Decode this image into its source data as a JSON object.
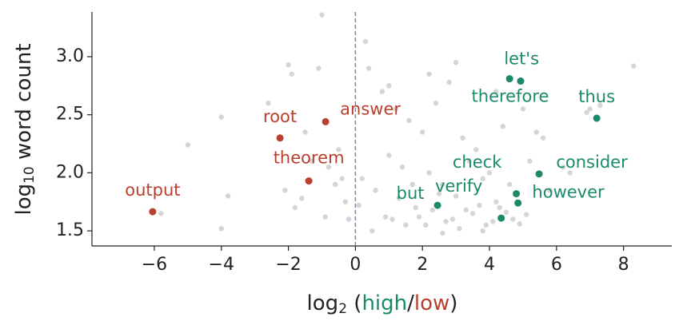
{
  "chart_data": {
    "type": "scatter",
    "xlabel": {
      "base": "log",
      "sub": "2",
      "open": " (",
      "high": "high",
      "slash": "/",
      "low": "low",
      "close": ")"
    },
    "ylabel": {
      "base": "log",
      "sub": "10",
      "rest": " word count"
    },
    "xlim": [
      -7.86,
      9.44
    ],
    "ylim": [
      1.37,
      3.385
    ],
    "xticks": [
      {
        "value": -6,
        "label": "−6"
      },
      {
        "value": -4,
        "label": "−4"
      },
      {
        "value": -2,
        "label": "−2"
      },
      0,
      2,
      4,
      6,
      8
    ],
    "yticks": [
      1.5,
      {
        "value": 2,
        "label": "2.0"
      },
      2.5,
      {
        "value": 3,
        "label": "3.0"
      }
    ],
    "vline": 0,
    "high_color": "#1b8a6b",
    "low_color": "#b9402e",
    "series": [
      {
        "color": "#c9cbcc",
        "x": [
          -1.0,
          0.3,
          -5.0,
          -4.0,
          -3.8,
          -5.8,
          -4.0,
          -2.0,
          -1.1,
          -1.9,
          -2.6,
          -1.5,
          -1.3,
          -0.8,
          -0.6,
          -0.3,
          -0.5,
          -1.8,
          -2.1,
          -0.2,
          0.4,
          0.8,
          1.2,
          1.6,
          2.0,
          2.4,
          2.8,
          3.2,
          3.6,
          4.0,
          4.4,
          5.0,
          5.6,
          6.2,
          7.0,
          8.3,
          0.2,
          0.6,
          1.0,
          1.4,
          1.8,
          2.2,
          2.6,
          3.0,
          3.4,
          3.8,
          4.2,
          4.6,
          5.2,
          5.8,
          6.4,
          1.1,
          1.5,
          1.9,
          2.3,
          2.7,
          3.1,
          3.5,
          3.9,
          4.3,
          4.7,
          5.1,
          0.1,
          0.5,
          0.9,
          1.3,
          1.7,
          2.1,
          2.5,
          2.9,
          3.3,
          3.7,
          4.1,
          4.5,
          4.9,
          -0.4,
          -0.9,
          -1.6,
          1.0,
          2.2,
          3.0,
          4.2,
          7.3,
          6.9,
          5.4,
          3.8,
          2.6
        ],
        "y": [
          3.36,
          3.13,
          2.24,
          2.48,
          1.8,
          1.65,
          1.52,
          2.93,
          2.9,
          2.85,
          2.6,
          2.35,
          2.1,
          2.05,
          1.9,
          1.75,
          2.2,
          1.7,
          1.85,
          1.6,
          2.9,
          2.7,
          2.55,
          2.45,
          2.35,
          2.6,
          2.78,
          2.3,
          2.2,
          2.0,
          2.4,
          2.55,
          2.3,
          2.05,
          2.55,
          2.92,
          1.95,
          1.85,
          2.15,
          2.05,
          1.7,
          2.0,
          1.9,
          1.8,
          2.1,
          1.95,
          1.75,
          1.9,
          2.1,
          1.85,
          2.0,
          1.6,
          1.55,
          1.62,
          1.68,
          1.58,
          1.52,
          1.65,
          1.55,
          1.7,
          1.6,
          1.64,
          1.72,
          1.5,
          1.62,
          1.78,
          1.9,
          1.55,
          1.82,
          1.6,
          1.68,
          1.72,
          1.58,
          1.66,
          1.56,
          1.95,
          1.62,
          1.78,
          2.75,
          2.85,
          2.95,
          2.7,
          2.58,
          2.52,
          2.35,
          1.5,
          1.48
        ]
      },
      {
        "color": "#b9402e",
        "x": [
          -6.05,
          -1.39,
          -2.25,
          -0.89
        ],
        "y": [
          1.665,
          1.93,
          2.3,
          2.44
        ],
        "labels": [
          "output",
          "theorem",
          "root",
          "answer"
        ]
      },
      {
        "color": "#1b8a6b",
        "x": [
          4.6,
          4.93,
          7.2,
          5.48,
          4.8,
          4.85,
          4.35,
          2.45
        ],
        "y": [
          2.81,
          2.79,
          2.47,
          1.99,
          1.82,
          1.74,
          1.61,
          1.72
        ],
        "labels": [
          "let's",
          "therefore",
          "thus",
          "consider",
          "however",
          "check",
          "verify",
          "but"
        ]
      }
    ]
  }
}
